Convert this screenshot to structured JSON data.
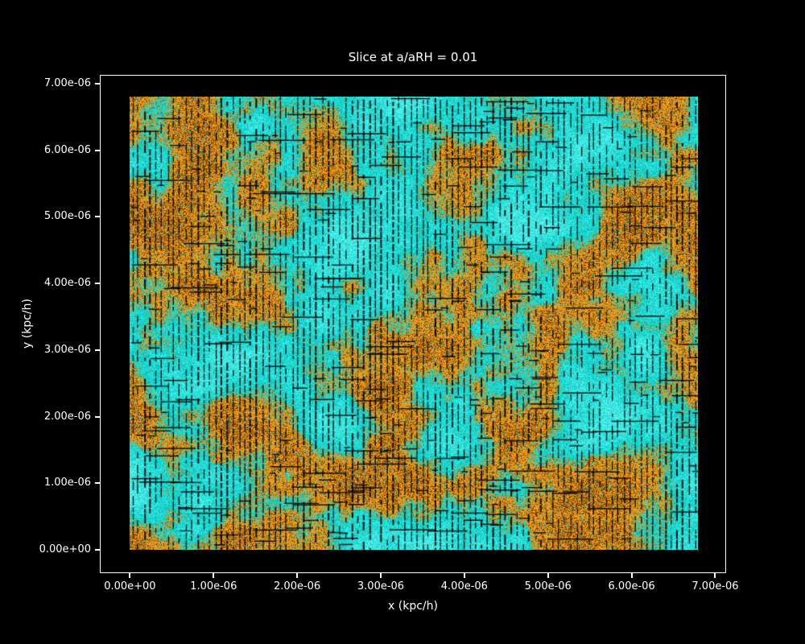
{
  "figure": {
    "background": "#000000",
    "text_color": "#ffffff"
  },
  "chart_data": {
    "type": "heatmap",
    "title": "Slice at a/aRH = 0.01",
    "xlabel": "x (kpc/h)",
    "ylabel": "y (kpc/h)",
    "x_ticks": {
      "values": [
        0,
        1e-06,
        2e-06,
        3e-06,
        4e-06,
        5e-06,
        6e-06,
        7e-06
      ],
      "labels": [
        "0.00e+00",
        "1.00e-06",
        "2.00e-06",
        "3.00e-06",
        "4.00e-06",
        "5.00e-06",
        "6.00e-06",
        "7.00e-06"
      ]
    },
    "y_ticks": {
      "values": [
        0,
        1e-06,
        2e-06,
        3e-06,
        4e-06,
        5e-06,
        6e-06,
        7e-06
      ],
      "labels": [
        "0.00e+00",
        "1.00e-06",
        "2.00e-06",
        "3.00e-06",
        "4.00e-06",
        "5.00e-06",
        "6.00e-06",
        "7.00e-06"
      ]
    },
    "xlim": [
      -3.6e-07,
      7.13e-06
    ],
    "ylim": [
      -3.5e-07,
      7.13e-06
    ],
    "grid": false,
    "legend": "none",
    "field": {
      "extent_x": [
        0,
        6.8e-06
      ],
      "extent_y": [
        0,
        6.8e-06
      ],
      "description": "2D simulation slice: cyan underdense background with irregular orange overdense clumps (olive-green rims), overlaid by dense black quiver-like marks - mostly vertical dashed lines on a regular column grid plus scattered short horizontal dashes",
      "colors": {
        "low": "#14d8d2",
        "low_bright": "#5ef0ea",
        "high": "#f5a316",
        "rim_olive": "#8a9a3c",
        "speckle_dark": "#5c4a10",
        "overlay": "#000000",
        "frame": "#ffffff"
      },
      "overlay_columns": 96,
      "horizontal_dash_count": 330
    }
  }
}
